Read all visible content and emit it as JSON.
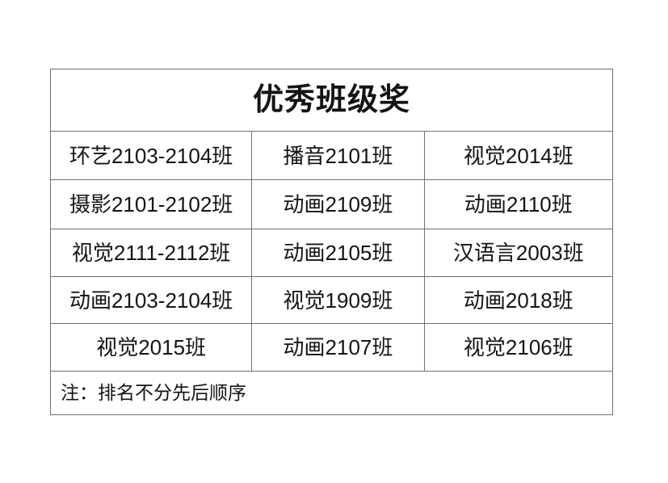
{
  "table": {
    "title": "优秀班级奖",
    "rows": [
      [
        "环艺2103-2104班",
        "播音2101班",
        "视觉2014班"
      ],
      [
        "摄影2101-2102班",
        "动画2109班",
        "动画2110班"
      ],
      [
        "视觉2111-2112班",
        "动画2105班",
        "汉语言2003班"
      ],
      [
        "动画2103-2104班",
        "视觉1909班",
        "动画2018班"
      ],
      [
        "视觉2015班",
        "动画2107班",
        "视觉2106班"
      ]
    ],
    "note": "注：排名不分先后顺序"
  },
  "colors": {
    "border": "#6f6f6f",
    "text": "#141414",
    "background": "#ffffff"
  }
}
